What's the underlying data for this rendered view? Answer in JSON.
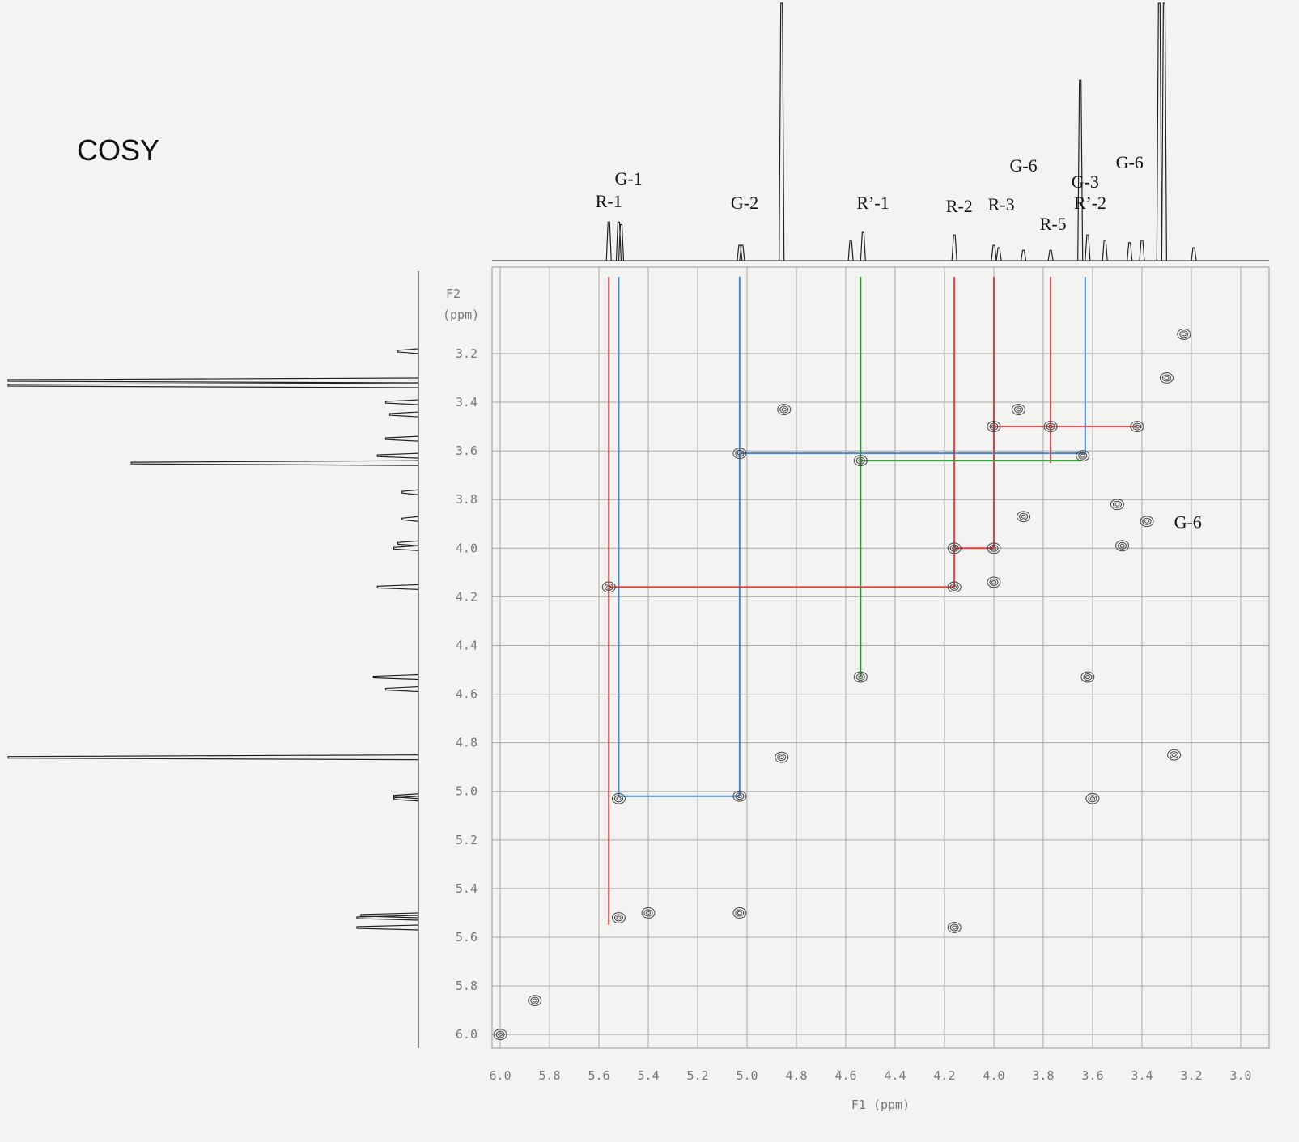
{
  "chart_data": {
    "type": "cosy",
    "title": "COSY",
    "xlabel": "F1 (ppm)",
    "ylabel_lines": [
      "F2",
      "(ppm)"
    ],
    "xlim": [
      6.033,
      2.885
    ],
    "ylim": [
      2.844,
      6.056
    ],
    "xticks": [
      {
        "value": 6,
        "label": "6.0"
      },
      5.8,
      5.6,
      5.4,
      5.2,
      {
        "value": 5,
        "label": "5.0"
      },
      4.8,
      4.6,
      4.4,
      4.2,
      {
        "value": 4,
        "label": "4.0"
      },
      3.8,
      3.6,
      3.4,
      3.2,
      {
        "value": 3,
        "label": "3.0"
      }
    ],
    "yticks": [
      3.2,
      3.4,
      3.6,
      3.8,
      {
        "value": 4,
        "label": "4.0"
      },
      4.2,
      4.4,
      4.6,
      4.8,
      {
        "value": 5,
        "label": "5.0"
      },
      5.2,
      5.4,
      5.6,
      5.8,
      {
        "value": 6,
        "label": "6.0"
      }
    ],
    "grid": true,
    "projection": {
      "x": [
        5.56,
        5.52,
        5.51,
        5.03,
        5.02,
        4.86,
        4.58,
        4.53,
        4.16,
        4.0,
        3.98,
        3.88,
        3.77,
        3.65,
        3.62,
        3.55,
        3.45,
        3.4,
        3.33,
        3.31,
        3.19
      ],
      "intensity": [
        0.15,
        0.15,
        0.14,
        0.06,
        0.06,
        1.0,
        0.08,
        0.11,
        0.1,
        0.06,
        0.05,
        0.04,
        0.04,
        0.7,
        0.1,
        0.08,
        0.07,
        0.08,
        1.0,
        1.0,
        0.05
      ]
    },
    "peak_labels": [
      {
        "text": "R-1",
        "x": 5.56
      },
      {
        "text": "G-1",
        "x": 5.48
      },
      {
        "text": "G-2",
        "x": 5.01
      },
      {
        "text": "R’-1",
        "x": 4.49
      },
      {
        "text": "R-2",
        "x": 4.14
      },
      {
        "text": "R-3",
        "x": 3.97
      },
      {
        "text": "R-5",
        "x": 3.76
      },
      {
        "text": "G-3",
        "x": 3.63
      },
      {
        "text": "R’-2",
        "x": 3.61
      },
      {
        "text": "G-6",
        "x": 3.88
      },
      {
        "text": "G-6",
        "x": 3.45
      }
    ],
    "plot_annotations": [
      {
        "text": "G-6",
        "x": 3.27,
        "y": 3.89
      }
    ],
    "cross_peaks": {
      "x": [
        5.56,
        5.52,
        5.03,
        5.03,
        5.03,
        4.54,
        4.54,
        4.16,
        4.16,
        4.16,
        4.0,
        4.0,
        4.0,
        3.9,
        3.77,
        3.64,
        3.42,
        3.38,
        3.48,
        3.5,
        3.62,
        3.6,
        4.86,
        3.3,
        5.86,
        6.0,
        4.85,
        3.27,
        3.23,
        3.88,
        5.4,
        5.52
      ],
      "y": [
        4.16,
        5.03,
        3.61,
        5.02,
        5.5,
        3.64,
        4.53,
        4.16,
        4.0,
        5.56,
        3.5,
        4.0,
        4.14,
        3.43,
        3.5,
        3.62,
        3.5,
        3.89,
        3.99,
        3.82,
        4.53,
        5.03,
        4.86,
        3.3,
        5.86,
        6.0,
        3.43,
        4.85,
        3.12,
        3.87,
        5.5,
        5.52
      ]
    },
    "drop_lines": [
      {
        "x": 5.56,
        "y": 5.55,
        "color": "#d94040"
      },
      {
        "x": 5.52,
        "y": 5.02,
        "color": "#4a86d0"
      },
      {
        "x": 5.03,
        "y": 5.02,
        "color": "#4a86d0"
      },
      {
        "x": 4.54,
        "y": 4.53,
        "color": "#2e9a2e"
      },
      {
        "x": 4.16,
        "y": 4.16,
        "color": "#d94040"
      },
      {
        "x": 4.0,
        "y": 4.0,
        "color": "#d94040"
      },
      {
        "x": 3.77,
        "y": 3.65,
        "color": "#d94040"
      },
      {
        "x": 3.63,
        "y": 3.61,
        "color": "#4a86d0"
      }
    ],
    "links": [
      {
        "y": 4.16,
        "x": [
          5.56,
          4.16
        ],
        "color": "#d94040"
      },
      {
        "y": 5.02,
        "x": [
          5.52,
          5.03
        ],
        "color": "#4a86d0"
      },
      {
        "y": 3.61,
        "x": [
          5.03,
          3.63
        ],
        "color": "#4a86d0"
      },
      {
        "y": 3.64,
        "x": [
          4.54,
          3.64
        ],
        "color": "#2e9a2e"
      },
      {
        "y": 4.0,
        "x": [
          4.16,
          4.0
        ],
        "color": "#d94040"
      },
      {
        "y": 3.5,
        "x": [
          4.0,
          3.42
        ],
        "color": "#d94040"
      }
    ]
  }
}
